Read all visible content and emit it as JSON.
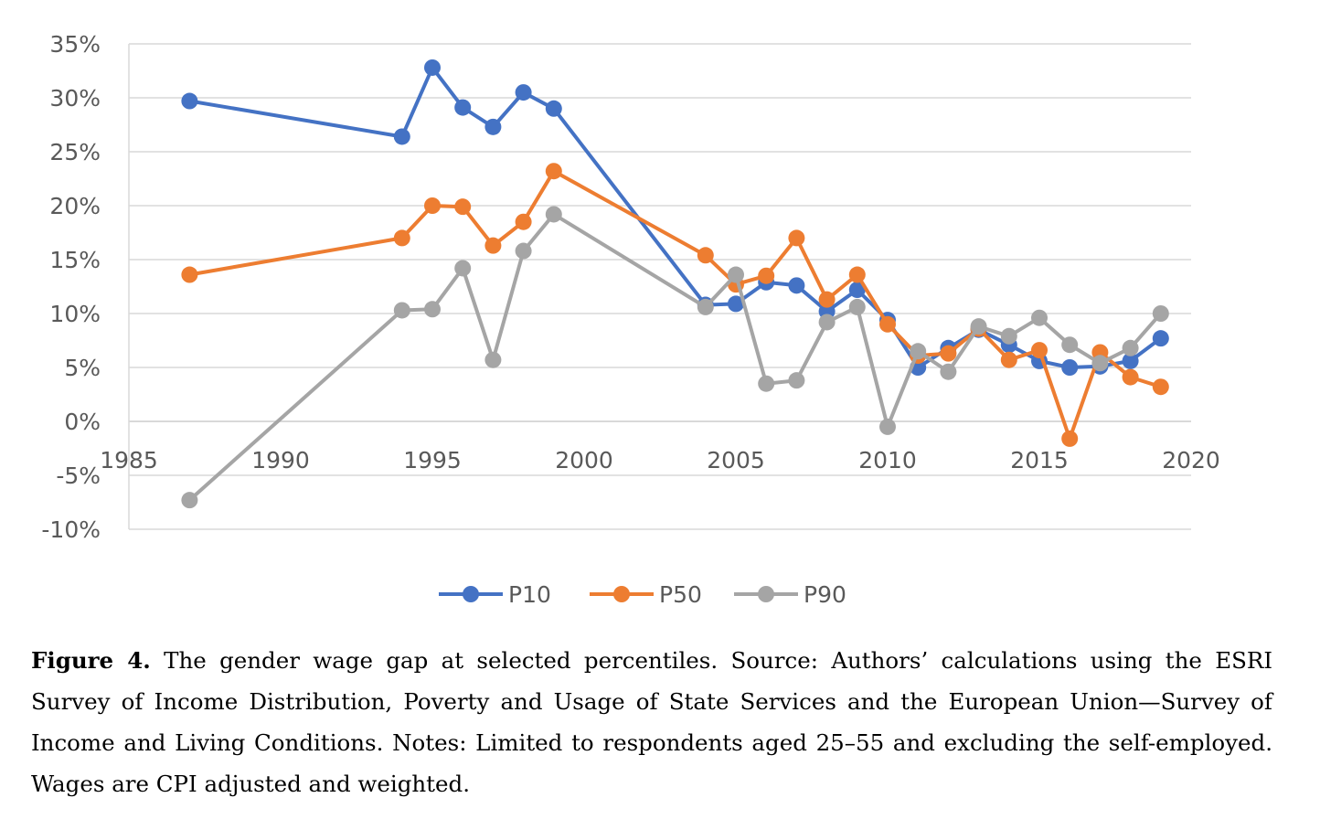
{
  "chart_data": {
    "type": "line",
    "title": "",
    "xlabel": "",
    "ylabel": "",
    "xlim": [
      1985,
      2020
    ],
    "ylim": [
      -10,
      35
    ],
    "x_ticks": [
      1985,
      1990,
      1995,
      2000,
      2005,
      2010,
      2015,
      2020
    ],
    "y_ticks": [
      -10,
      -5,
      0,
      5,
      10,
      15,
      20,
      25,
      30,
      35
    ],
    "y_tick_labels": [
      "-10%",
      "-5%",
      "0%",
      "5%",
      "10%",
      "15%",
      "20%",
      "25%",
      "30%",
      "35%"
    ],
    "grid": "horizontal",
    "legend_position": "bottom",
    "series": [
      {
        "name": "P10",
        "color": "#4472C4",
        "x": [
          1987,
          1994,
          1995,
          1996,
          1997,
          1998,
          1999,
          2004,
          2005,
          2006,
          2007,
          2008,
          2009,
          2010,
          2011,
          2012,
          2013,
          2014,
          2015,
          2016,
          2017,
          2018,
          2019
        ],
        "y": [
          29.7,
          26.4,
          32.8,
          29.1,
          27.3,
          30.5,
          29.0,
          10.8,
          10.9,
          12.9,
          12.6,
          10.2,
          12.2,
          9.4,
          5.0,
          6.8,
          8.5,
          7.1,
          5.6,
          5.0,
          5.1,
          5.6,
          7.7
        ]
      },
      {
        "name": "P50",
        "color": "#ED7D31",
        "x": [
          1987,
          1994,
          1995,
          1996,
          1997,
          1998,
          1999,
          2004,
          2005,
          2006,
          2007,
          2008,
          2009,
          2010,
          2011,
          2012,
          2013,
          2014,
          2015,
          2016,
          2017,
          2018,
          2019
        ],
        "y": [
          13.6,
          17.0,
          20.0,
          19.9,
          16.3,
          18.5,
          23.2,
          15.4,
          12.7,
          13.5,
          17.0,
          11.3,
          13.6,
          9.0,
          6.1,
          6.3,
          8.6,
          5.7,
          6.6,
          -1.6,
          6.4,
          4.1,
          3.2
        ]
      },
      {
        "name": "P90",
        "color": "#A5A5A5",
        "x": [
          1987,
          1994,
          1995,
          1996,
          1997,
          1998,
          1999,
          2004,
          2005,
          2006,
          2007,
          2008,
          2009,
          2010,
          2011,
          2012,
          2013,
          2014,
          2015,
          2016,
          2017,
          2018,
          2019
        ],
        "y": [
          -7.3,
          10.3,
          10.4,
          14.2,
          5.7,
          15.8,
          19.2,
          10.6,
          13.6,
          3.5,
          3.8,
          9.2,
          10.6,
          -0.5,
          6.5,
          4.6,
          8.8,
          7.9,
          9.6,
          7.1,
          5.4,
          6.8,
          10.0
        ]
      }
    ]
  },
  "caption": {
    "label": "Figure 4.",
    "text": " The gender wage gap at selected percentiles. Source: Authors’ calculations using the ESRI Survey of Income Distribution, Poverty and Usage of State Services and the European Union—Survey of Income and Living Conditions. Notes: Limited to respondents aged 25–55 and excluding the self-employed. Wages are CPI adjusted and weighted."
  }
}
